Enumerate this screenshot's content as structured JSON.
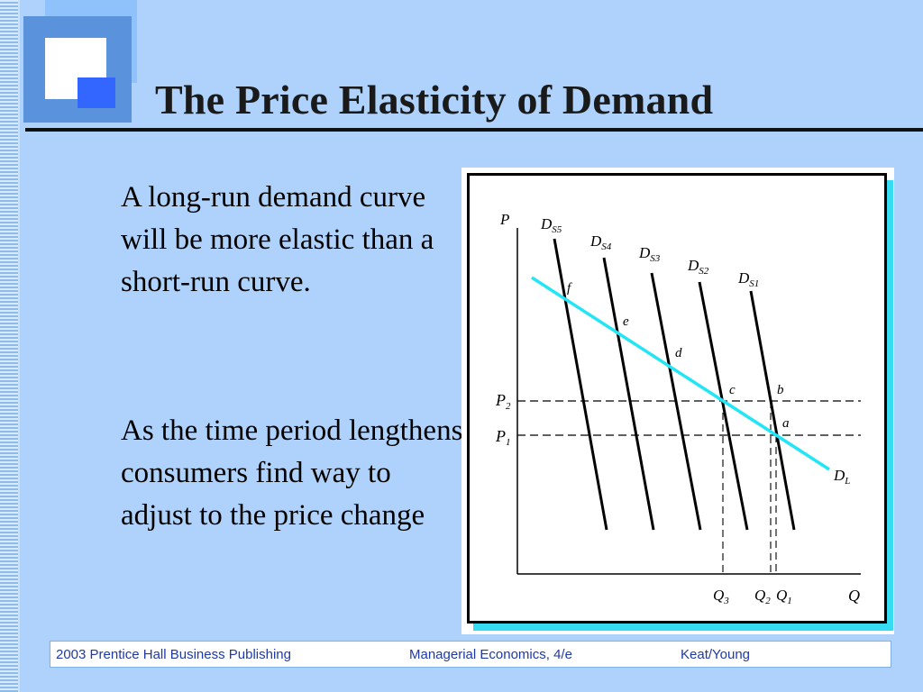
{
  "slide": {
    "title": "The Price Elasticity of Demand",
    "paragraphs": [
      "A long-run demand curve will be more elastic than a short-run curve.",
      "As the time period lengthens consumers find way to adjust to the price change"
    ]
  },
  "figure": {
    "axis_labels": {
      "y": "P",
      "x": "Q"
    },
    "price_labels": {
      "p2": {
        "main": "P",
        "sub": "2"
      },
      "p1": {
        "main": "P",
        "sub": "1"
      }
    },
    "quantity_labels": [
      {
        "main": "Q",
        "sub": "3"
      },
      {
        "main": "Q",
        "sub": "2"
      },
      {
        "main": "Q",
        "sub": "1"
      }
    ],
    "short_run_curves": [
      {
        "main": "D",
        "sub": "S5"
      },
      {
        "main": "D",
        "sub": "S4"
      },
      {
        "main": "D",
        "sub": "S3"
      },
      {
        "main": "D",
        "sub": "S2"
      },
      {
        "main": "D",
        "sub": "S1"
      }
    ],
    "long_run_curve": {
      "main": "D",
      "sub": "L",
      "color": "#22e6f5"
    },
    "points": [
      "f",
      "e",
      "d",
      "c",
      "b",
      "a"
    ]
  },
  "footer": {
    "publisher": "2003 Prentice Hall Business Publishing",
    "book": "Managerial Economics, 4/e",
    "authors": "Keat/Young"
  },
  "colors": {
    "background": "#aed2fb",
    "accent_blue": "#3366ff",
    "footer_text": "#1f39a8"
  }
}
